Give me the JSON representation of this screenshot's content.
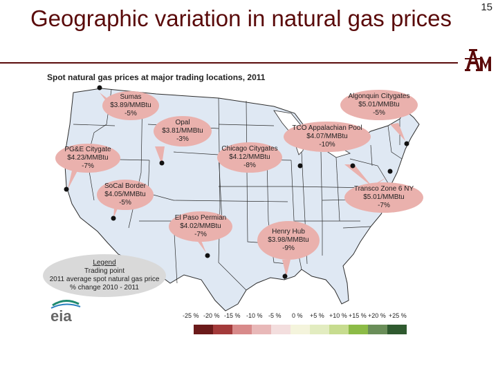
{
  "slide": {
    "title": "Geographic variation in natural gas prices",
    "page_number": "15",
    "subtitle": "Spot natural gas prices at major trading locations, 2011"
  },
  "logos": {
    "tamu": "Texas A&M logo",
    "eia": "eia"
  },
  "bubbles": [
    {
      "id": "sumas",
      "name": "Sumas",
      "price": "$3.89/MMBtu",
      "change": "-5%",
      "color": "red"
    },
    {
      "id": "opal",
      "name": "Opal",
      "price": "$3.81/MMBtu",
      "change": "-3%",
      "color": "red"
    },
    {
      "id": "pge",
      "name": "PG&E Citygate",
      "price": "$4.23/MMBtu",
      "change": "-7%",
      "color": "red"
    },
    {
      "id": "socal",
      "name": "SoCal Border",
      "price": "$4.05/MMBtu",
      "change": "-5%",
      "color": "red"
    },
    {
      "id": "elpaso",
      "name": "El Paso Permian",
      "price": "$4.02/MMBtu",
      "change": "-7%",
      "color": "red"
    },
    {
      "id": "chicago",
      "name": "Chicago Citygates",
      "price": "$4.12/MMBtu",
      "change": "-8%",
      "color": "red"
    },
    {
      "id": "henry",
      "name": "Henry Hub",
      "price": "$3.98/MMBtu",
      "change": "-9%",
      "color": "red"
    },
    {
      "id": "tco",
      "name": "TCO Appalachian Pool",
      "price": "$4.07/MMBtu",
      "change": "-10%",
      "color": "red"
    },
    {
      "id": "algonquin",
      "name": "Algonquin Citygates",
      "price": "$5.01/MMBtu",
      "change": "-5%",
      "color": "red"
    },
    {
      "id": "transco",
      "name": "Transco Zone 6 NY",
      "price": "$5.01/MMBtu",
      "change": "-7%",
      "color": "red"
    }
  ],
  "legend": {
    "title": "Legend",
    "line1": "Trading point",
    "line2": "2011 average spot natural gas price",
    "line3": "% change 2010 - 2011"
  },
  "scale": {
    "labels": [
      "-25 %",
      "-20 %",
      "-15 %",
      "-10 %",
      "-5 %",
      "0 %",
      "+5 %",
      "+10 %",
      "+15 %",
      "+20 %",
      "+25 %"
    ],
    "colors": [
      "#6b1a1a",
      "#a33a3a",
      "#d88a8a",
      "#e8b8b8",
      "#f3dede",
      "#f4f4dc",
      "#e2ecc0",
      "#c7dc8f",
      "#8cbb47",
      "#6a8e59",
      "#2f5a2f"
    ]
  },
  "colors": {
    "title": "#5a0a0a",
    "map_fill": "#dfe8f3",
    "bubble": "#eab1ad",
    "legend": "#d9d9d9"
  }
}
